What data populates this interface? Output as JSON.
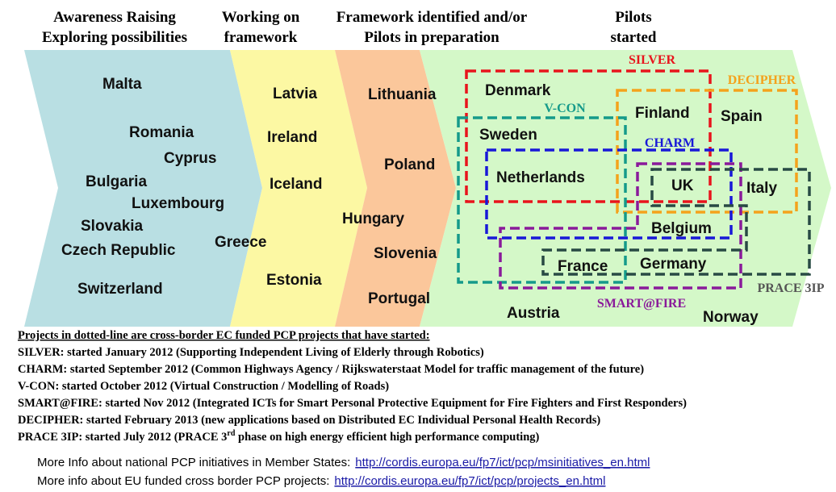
{
  "stages": [
    {
      "header": [
        "Awareness Raising",
        "Exploring possibilities"
      ],
      "countries": [
        "Malta",
        "Romania",
        "Cyprus",
        "Bulgaria",
        "Luxembourg",
        "Slovakia",
        "Czech Republic",
        "Switzerland",
        "Greece"
      ]
    },
    {
      "header": [
        "Working on",
        "framework"
      ],
      "countries": [
        "Latvia",
        "Ireland",
        "Iceland",
        "Estonia"
      ]
    },
    {
      "header": [
        "Framework identified and/or",
        "Pilots in preparation"
      ],
      "countries": [
        "Lithuania",
        "Poland",
        "Hungary",
        "Slovenia",
        "Portugal"
      ]
    },
    {
      "header": [
        "Pilots",
        "started"
      ],
      "countries": [
        "Denmark",
        "Finland",
        "Spain",
        "Sweden",
        "Netherlands",
        "UK",
        "Italy",
        "Belgium",
        "France",
        "Germany",
        "Austria",
        "Norway"
      ]
    }
  ],
  "projects": [
    "SILVER",
    "DECIPHER",
    "V-CON",
    "CHARM",
    "SMART@FIRE",
    "PRACE 3IP"
  ],
  "notes": {
    "heading": "Projects in dotted-line are cross-border EC funded PCP projects that have started:",
    "items": [
      "SILVER: started January 2012 (Supporting Independent Living of Elderly through Robotics)",
      "CHARM: started September 2012 (Common Highways Agency / Rijkswaterstaat Model for traffic management of the future)",
      "V-CON: started October 2012 (Virtual Construction / Modelling of Roads)",
      "SMART@FIRE: started Nov 2012 (Integrated ICTs for Smart Personal Protective Equipment for Fire Fighters and First Responders)",
      "DECIPHER: started February 2013 (new applications based on Distributed EC Individual Personal Health Records)"
    ],
    "prace": {
      "before": "PRACE 3IP: started July 2012 (PRACE 3",
      "sup": "rd",
      "after": " phase on high energy efficient high performance computing)"
    }
  },
  "links": [
    {
      "text": "More Info about national PCP initiatives in Member States:",
      "url": "http://cordis.europa.eu/fp7/ict/pcp/msinitiatives_en.html"
    },
    {
      "text": "More info about EU funded cross border PCP projects:",
      "url": "http://cordis.europa.eu/fp7/ict/pcp/projects_en.html"
    }
  ]
}
